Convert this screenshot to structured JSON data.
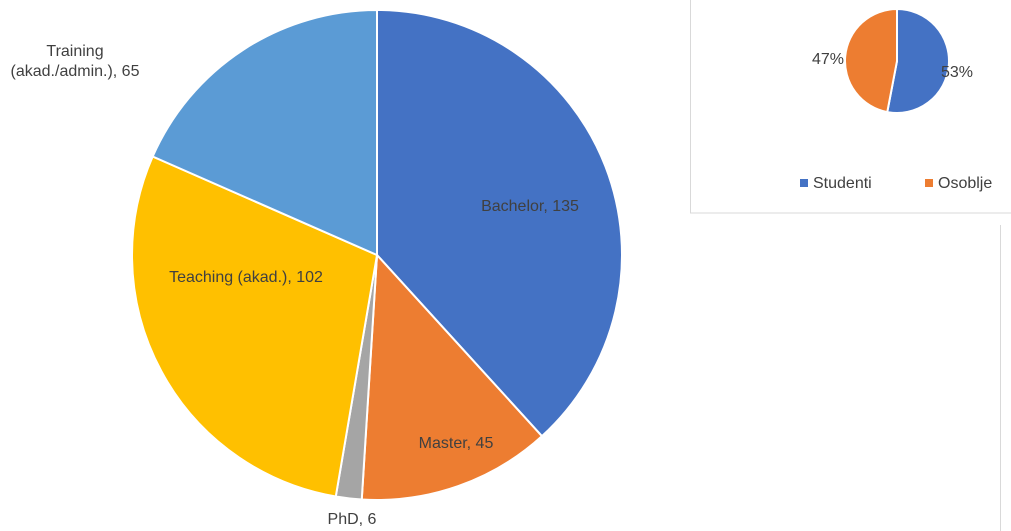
{
  "chart_data": [
    {
      "type": "pie",
      "values": [
        135,
        45,
        6,
        102,
        65
      ],
      "value_labels": [
        "Bachelor, 135",
        "Master, 45",
        "PhD, 6",
        "Teaching (akad.), 102",
        "Training\n(akad./admin.), 65"
      ],
      "colors": [
        "#4472c4",
        "#ed7d31",
        "#a5a5a5",
        "#ffc000",
        "#5b9bd5"
      ]
    },
    {
      "type": "pie",
      "categories": [
        "Studenti",
        "Osoblje"
      ],
      "values": [
        53,
        47
      ],
      "value_labels": [
        "53%",
        "47%"
      ],
      "colors": [
        "#4472c4",
        "#ed7d31"
      ],
      "legend": "bottom"
    }
  ]
}
